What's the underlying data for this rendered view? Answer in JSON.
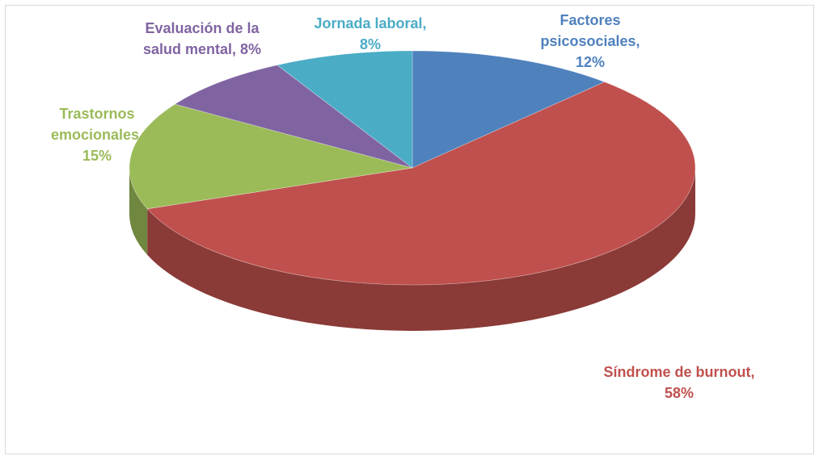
{
  "chart_data": {
    "type": "pie",
    "categories": [
      "Factores psicosociales",
      "Síndrome de burnout",
      "Trastornos emocionales",
      "Evaluación de la salud mental",
      "Jornada laboral"
    ],
    "values": [
      12,
      58,
      15,
      8,
      8
    ],
    "value_labels": [
      "12%",
      "58%",
      "15%",
      "8%",
      "8%"
    ],
    "separator": ",",
    "colors": [
      "#4f81bd",
      "#c0504d",
      "#9bbb59",
      "#8064a2",
      "#4bacc6"
    ]
  }
}
